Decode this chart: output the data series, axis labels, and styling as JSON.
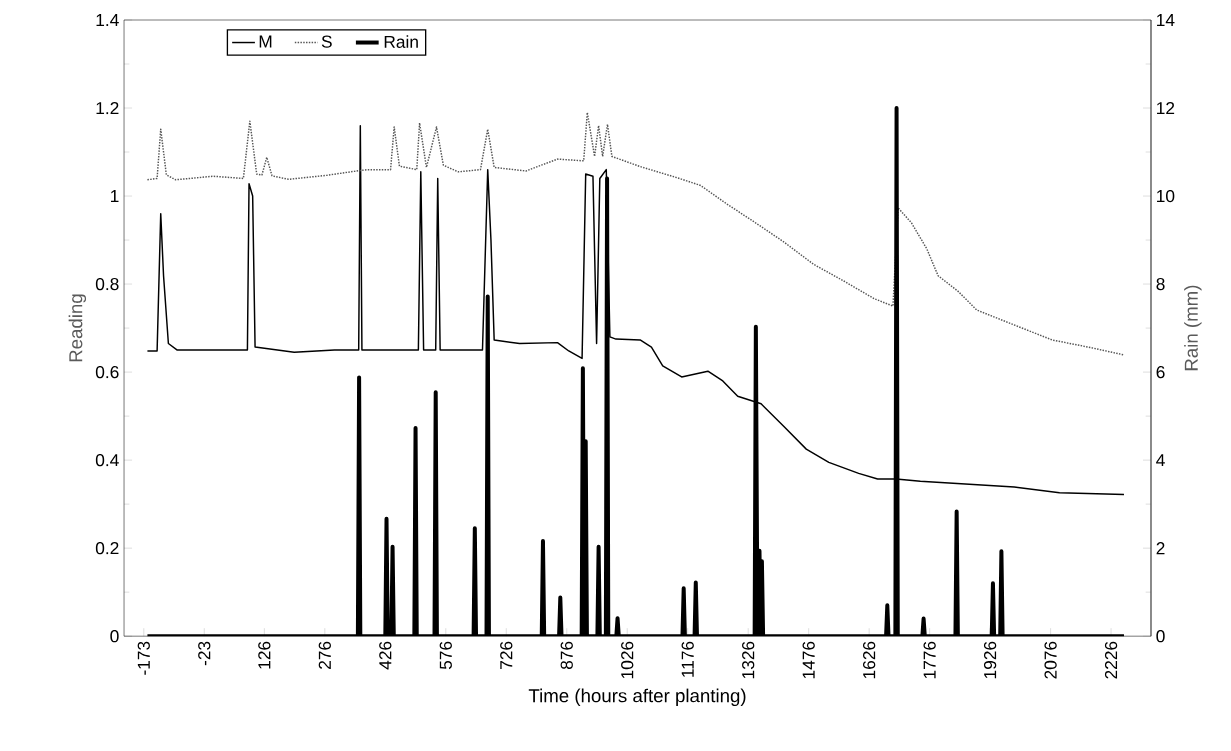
{
  "chart_data": {
    "type": "line",
    "xlabel": "Time (hours after planting)",
    "ylabel": "Reading",
    "y2label": "Rain (mm)",
    "xlim": [
      -222,
      2325
    ],
    "xticks": [
      -173,
      -23,
      126,
      276,
      426,
      576,
      726,
      876,
      1026,
      1176,
      1326,
      1476,
      1626,
      1776,
      1926,
      2076,
      2226
    ],
    "ylim": [
      0,
      1.4
    ],
    "yticks": [
      0,
      0.2,
      0.4,
      0.6,
      0.8,
      1,
      1.2,
      1.4
    ],
    "y2lim": [
      0,
      14
    ],
    "y2ticks": [
      0,
      2,
      4,
      6,
      8,
      10,
      12,
      14
    ],
    "grid": false,
    "legend": "top left",
    "marker": "none",
    "series": [
      {
        "name": "M",
        "color": "#000000",
        "line_style": "solid",
        "x": [
          -164,
          -140,
          -131,
          -124,
          -112,
          -90,
          84,
          88,
          97,
          103,
          200,
          300,
          360,
          364,
          368,
          450,
          508,
          514,
          521,
          551,
          556,
          562,
          620,
          667,
          680,
          688,
          696,
          759,
          853,
          881,
          914,
          923,
          941,
          950,
          958,
          974,
          983,
          998,
          1058,
          1086,
          1114,
          1161,
          1226,
          1263,
          1300,
          1358,
          1414,
          1470,
          1526,
          1600,
          1647,
          1693,
          1753,
          1986,
          2098,
          2258
        ],
        "values": [
          0.648,
          0.648,
          0.96,
          0.819,
          0.665,
          0.65,
          0.65,
          1.028,
          1.0,
          0.657,
          0.645,
          0.65,
          0.65,
          1.16,
          0.65,
          0.65,
          0.65,
          1.055,
          0.65,
          0.65,
          1.04,
          0.65,
          0.65,
          0.65,
          1.06,
          0.9,
          0.673,
          0.665,
          0.667,
          0.648,
          0.631,
          1.05,
          1.045,
          0.665,
          1.04,
          1.06,
          0.68,
          0.675,
          0.673,
          0.657,
          0.614,
          0.589,
          0.602,
          0.58,
          0.545,
          0.528,
          0.477,
          0.425,
          0.395,
          0.37,
          0.357,
          0.357,
          0.352,
          0.339,
          0.326,
          0.322
        ]
      },
      {
        "name": "S",
        "color": "#555555",
        "line_style": "dotted",
        "x": [
          -164,
          -140,
          -131,
          -117,
          -94,
          -1,
          74,
          90,
          107,
          120,
          132,
          145,
          186,
          280,
          355,
          382,
          439,
          448,
          461,
          504,
          511,
          528,
          553,
          570,
          607,
          662,
          680,
          696,
          775,
          853,
          918,
          927,
          945,
          955,
          965,
          977,
          988,
          1058,
          1152,
          1208,
          1273,
          1338,
          1414,
          1488,
          1563,
          1638,
          1685,
          1698,
          1731,
          1769,
          1797,
          1846,
          1893,
          1986,
          2080,
          2174,
          2258
        ],
        "values": [
          1.037,
          1.04,
          1.152,
          1.048,
          1.037,
          1.045,
          1.04,
          1.17,
          1.05,
          1.048,
          1.088,
          1.046,
          1.038,
          1.047,
          1.057,
          1.06,
          1.06,
          1.157,
          1.068,
          1.06,
          1.166,
          1.065,
          1.157,
          1.07,
          1.055,
          1.06,
          1.152,
          1.065,
          1.057,
          1.084,
          1.08,
          1.19,
          1.09,
          1.16,
          1.09,
          1.163,
          1.09,
          1.067,
          1.041,
          1.024,
          0.982,
          0.943,
          0.896,
          0.845,
          0.807,
          0.767,
          0.75,
          0.973,
          0.939,
          0.88,
          0.819,
          0.784,
          0.741,
          0.707,
          0.673,
          0.656,
          0.639
        ]
      },
      {
        "name": "Rain",
        "axis": "y2",
        "color": "#000000",
        "line_style": "solid",
        "x": [
          -164,
          358,
          361,
          364,
          426,
          429,
          432,
          441,
          444,
          447,
          498,
          501,
          504,
          548,
          551,
          554,
          645,
          648,
          651,
          677,
          680,
          683,
          814,
          817,
          820,
          857,
          860,
          863,
          913,
          916,
          919,
          923,
          926,
          952,
          955,
          958,
          973,
          976,
          979,
          999,
          1002,
          1005,
          1163,
          1166,
          1169,
          1193,
          1196,
          1199,
          1342,
          1345,
          1349,
          1354,
          1357,
          1360,
          1363,
          1668,
          1671,
          1674,
          1691,
          1694,
          1697,
          1758,
          1761,
          1764,
          1840,
          1843,
          1846,
          1930,
          1933,
          1936,
          1951,
          1954,
          1957,
          2258
        ],
        "values": [
          0,
          0,
          5.88,
          0,
          0,
          2.67,
          0,
          0,
          2.03,
          0,
          0,
          4.73,
          0,
          0,
          5.54,
          0,
          0,
          2.45,
          0,
          0,
          7.72,
          0,
          0,
          2.16,
          0,
          0,
          0.88,
          0,
          0,
          6.09,
          0,
          4.43,
          0,
          0,
          2.03,
          0,
          0,
          10.4,
          0,
          0,
          0.41,
          0,
          0,
          1.09,
          0,
          0,
          1.22,
          0,
          0,
          7.03,
          0,
          1.94,
          0,
          1.7,
          0,
          0,
          0.7,
          0,
          0,
          12.0,
          0,
          0,
          0.4,
          0,
          0,
          2.83,
          0,
          0,
          1.2,
          0,
          0,
          1.93,
          0,
          0
        ]
      }
    ]
  }
}
